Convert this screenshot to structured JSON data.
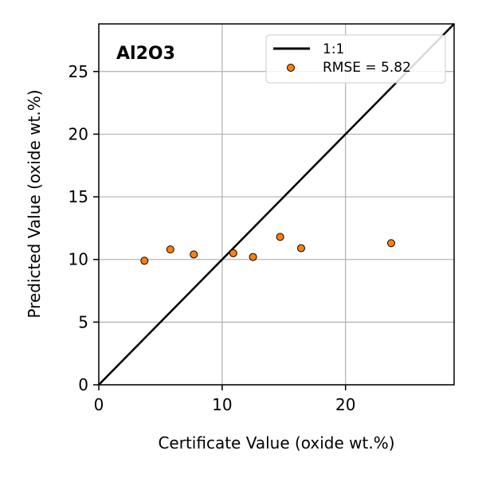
{
  "chart_data": {
    "type": "scatter",
    "panel_label": "Al2O3",
    "xlabel": "Certificate Value (oxide wt.%)",
    "ylabel": "Predicted Value (oxide wt.%)",
    "xlim": [
      0,
      28.8
    ],
    "ylim": [
      0,
      28.8
    ],
    "x_ticks": [
      0,
      10,
      20
    ],
    "y_ticks": [
      0,
      5,
      10,
      15,
      20,
      25
    ],
    "grid": true,
    "legend_position": "top-right",
    "legend": {
      "line_label": "1:1",
      "points_label": "RMSE = 5.82"
    },
    "series": [
      {
        "name": "RMSE = 5.82",
        "color": "#ff7f0e",
        "x": [
          3.7,
          5.8,
          7.7,
          10.9,
          12.5,
          14.7,
          16.4,
          23.7
        ],
        "y": [
          9.9,
          10.8,
          10.4,
          10.5,
          10.2,
          11.8,
          10.9,
          11.3
        ]
      }
    ],
    "reference_line": {
      "name": "1:1",
      "color": "#000000"
    }
  }
}
